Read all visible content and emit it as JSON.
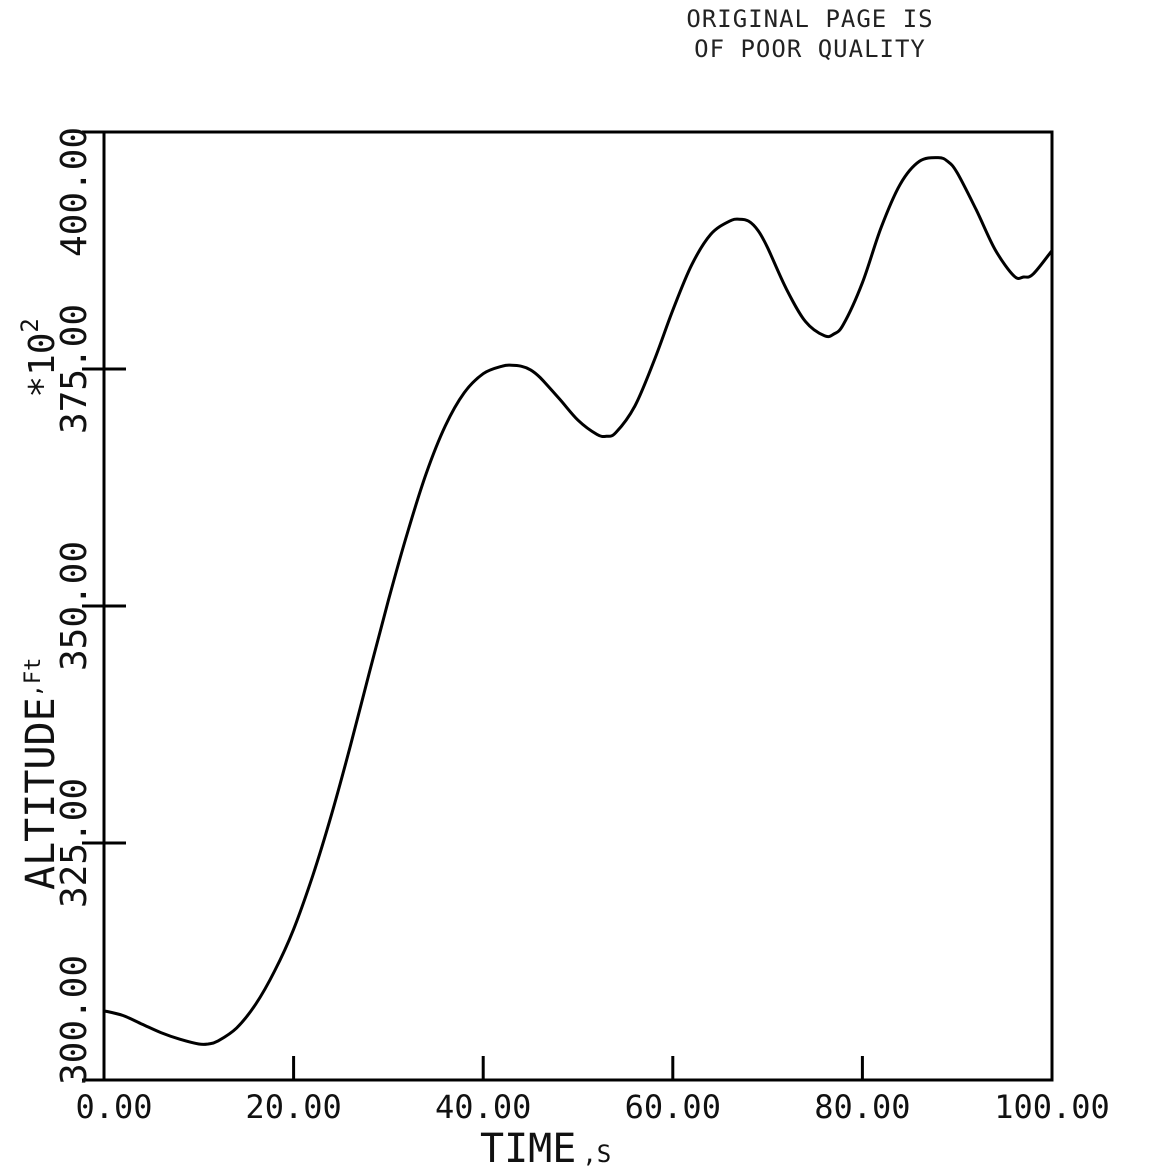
{
  "stamp": {
    "line1": "ORIGINAL PAGE IS",
    "line2": "OF POOR QUALITY"
  },
  "chart_data": {
    "type": "line",
    "title": "",
    "xlabel": "TIME",
    "xlabel_unit": ",S",
    "ylabel": "ALTITUDE",
    "ylabel_unit": ",Ft",
    "ylabel_multiplier": "*10",
    "ylabel_multiplier_exp": "2",
    "xlim": [
      0,
      100
    ],
    "ylim": [
      300,
      400
    ],
    "x_ticks": [
      0,
      20,
      40,
      60,
      80,
      100
    ],
    "x_tick_labels": [
      "0.00",
      "20.00",
      "40.00",
      "60.00",
      "80.00",
      "100.00"
    ],
    "y_ticks": [
      300,
      325,
      350,
      375,
      400
    ],
    "y_tick_labels": [
      "300.00",
      "325.00",
      "350.00",
      "375.00",
      "400.00"
    ],
    "grid": false,
    "legend": "none",
    "line_color": "#000000",
    "series": [
      {
        "x": [
          0,
          2,
          4,
          6,
          8,
          10,
          11,
          12,
          14,
          16,
          18,
          20,
          22,
          24,
          26,
          28,
          30,
          32,
          34,
          36,
          38,
          40,
          42,
          43,
          44,
          45,
          46,
          48,
          50,
          52,
          53,
          54,
          56,
          58,
          60,
          62,
          64,
          66,
          67,
          68,
          69,
          70,
          72,
          74,
          76,
          77,
          78,
          80,
          82,
          84,
          86,
          88,
          89,
          90,
          92,
          94,
          96,
          97,
          98,
          100
        ],
        "y": [
          307.3,
          306.8,
          305.9,
          305.0,
          304.3,
          303.8,
          303.8,
          304.1,
          305.5,
          308.0,
          311.5,
          315.9,
          321.5,
          328.0,
          335.3,
          343.0,
          350.6,
          357.7,
          364.0,
          369.0,
          372.5,
          374.5,
          375.3,
          375.4,
          375.3,
          374.9,
          374.1,
          371.9,
          369.6,
          368.1,
          367.9,
          368.3,
          371.1,
          375.8,
          381.2,
          386.0,
          389.2,
          390.6,
          390.8,
          390.6,
          389.6,
          387.8,
          383.4,
          380.0,
          378.5,
          378.7,
          379.7,
          384.1,
          390.0,
          394.5,
          396.9,
          397.3,
          396.9,
          395.7,
          391.8,
          387.6,
          384.8,
          384.7,
          385.0,
          387.5
        ]
      }
    ]
  }
}
